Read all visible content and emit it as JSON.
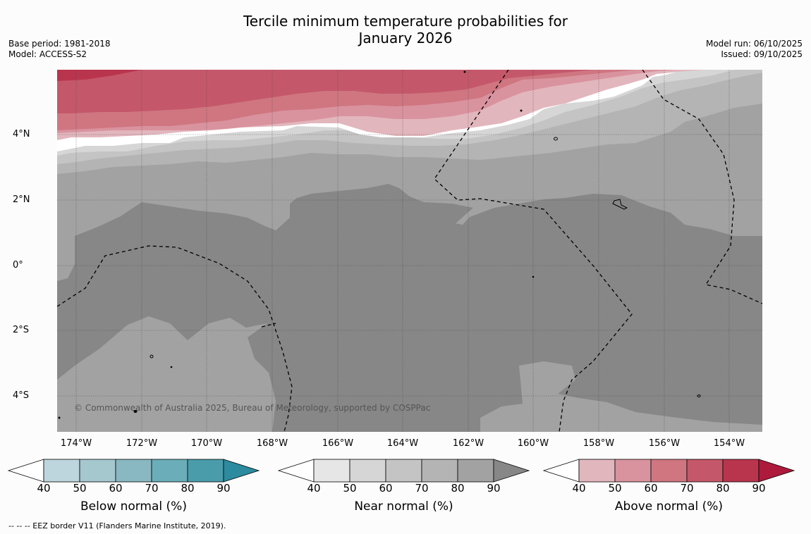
{
  "title": {
    "line1": "Tercile minimum temperature probabilities for",
    "line2": "January 2026"
  },
  "meta": {
    "base_period": "Base period: 1981-2018",
    "model": "Model: ACCESS-S2",
    "model_run": "Model run: 06/10/2025",
    "issued": "Issued: 09/10/2025"
  },
  "map": {
    "lat_labels": [
      "4°N",
      "2°N",
      "0°",
      "2°S",
      "4°S"
    ],
    "lon_labels": [
      "174°W",
      "172°W",
      "170°W",
      "168°W",
      "166°W",
      "164°W",
      "162°W",
      "160°W",
      "158°W",
      "156°W",
      "154°W"
    ],
    "copyright": "© Commonwealth of Australia 2025, Bureau of Meteorology, supported by COSPPac"
  },
  "colorbars": [
    {
      "title": "Below normal (%)",
      "ticks": [
        "40",
        "50",
        "60",
        "70",
        "80",
        "90"
      ],
      "colors": [
        "#ffffff",
        "#bdd5dc",
        "#a5c7ce",
        "#89b7c2",
        "#6badb9",
        "#4a9cab",
        "#2c8b9e"
      ]
    },
    {
      "title": "Near normal (%)",
      "ticks": [
        "40",
        "50",
        "60",
        "70",
        "80",
        "90"
      ],
      "colors": [
        "#ffffff",
        "#e6e6e6",
        "#d6d6d6",
        "#c4c4c4",
        "#b4b4b4",
        "#a2a2a2",
        "#878787"
      ]
    },
    {
      "title": "Above normal (%)",
      "ticks": [
        "40",
        "50",
        "60",
        "70",
        "80",
        "90"
      ],
      "colors": [
        "#ffffff",
        "#e2b6bd",
        "#d9939e",
        "#cf7681",
        "#c4586a",
        "#b9354e",
        "#ad1a3c"
      ]
    }
  ],
  "footnote": "--  --  -- EEZ border V11 (Flanders Marine Institute, 2019)."
}
